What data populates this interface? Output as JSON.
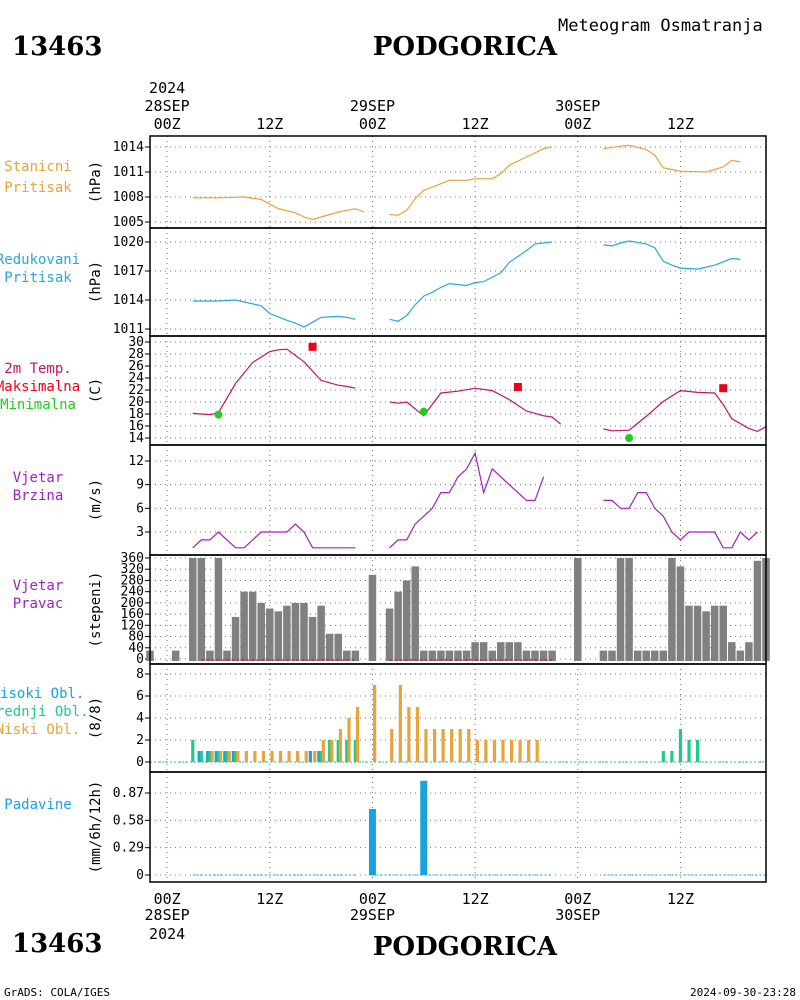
{
  "header": {
    "station_id": "13463",
    "station_name": "PODGORICA",
    "subtitle": "Meteogram Osmatranja"
  },
  "footer": {
    "credit": "GrADS: COLA/IGES",
    "timestamp": "2024-09-30-23:28"
  },
  "time_axis": {
    "ticks": [
      "00Z",
      "12Z",
      "00Z",
      "12Z",
      "00Z",
      "12Z"
    ],
    "day_labels": [
      "28SEP",
      "29SEP",
      "30SEP"
    ],
    "year_label": "2024",
    "time_unit": "hours since 2024-09-28 00Z",
    "range_hours": [
      -2,
      70
    ]
  },
  "colors": {
    "station_pressure": "#e8a33a",
    "reduced_pressure": "#2aa7d8",
    "temperature": "#c0136b",
    "tmax": "#e8001c",
    "tmin": "#22cc22",
    "wind": "#a020c0",
    "wind_dir_bar": "#808080",
    "cloud_high": "#16a3e0",
    "cloud_mid": "#1ccc8c",
    "cloud_low": "#e8a33a",
    "precip": "#16a3e0"
  },
  "chart_data": [
    {
      "type": "line",
      "id": "station_pressure",
      "label_lines": [
        "Stanicni",
        "Pritisak"
      ],
      "ylabel": "(hPa)",
      "yticks": [
        "1005",
        "1008",
        "1011",
        "1014"
      ],
      "ylim": [
        1004.5,
        1015.0
      ],
      "segments": [
        [
          [
            3,
            1007.9
          ],
          [
            6,
            1007.9
          ],
          [
            9,
            1008.0
          ],
          [
            11,
            1007.7
          ],
          [
            13,
            1006.6
          ],
          [
            15,
            1006.1
          ],
          [
            16,
            1005.6
          ],
          [
            17,
            1005.3
          ],
          [
            18,
            1005.6
          ],
          [
            20,
            1006.2
          ],
          [
            22,
            1006.6
          ],
          [
            23,
            1006.2
          ]
        ],
        [
          [
            26,
            1005.9
          ],
          [
            27,
            1005.8
          ],
          [
            28,
            1006.4
          ],
          [
            29,
            1007.8
          ],
          [
            30,
            1008.8
          ],
          [
            31,
            1009.2
          ],
          [
            32,
            1009.6
          ],
          [
            33,
            1010.0
          ],
          [
            35,
            1010.0
          ],
          [
            36,
            1010.2
          ],
          [
            38,
            1010.2
          ],
          [
            39,
            1010.8
          ],
          [
            40,
            1011.8
          ],
          [
            42,
            1012.8
          ],
          [
            44,
            1013.8
          ],
          [
            45,
            1014.0
          ]
        ],
        [
          [
            51,
            1013.8
          ],
          [
            53,
            1014.1
          ],
          [
            54,
            1014.2
          ],
          [
            56,
            1013.7
          ],
          [
            57,
            1013.0
          ],
          [
            58,
            1011.5
          ],
          [
            59,
            1011.3
          ],
          [
            60,
            1011.1
          ],
          [
            63,
            1011.0
          ],
          [
            65,
            1011.6
          ],
          [
            66,
            1012.4
          ],
          [
            67,
            1012.2
          ]
        ]
      ]
    },
    {
      "type": "line",
      "id": "reduced_pressure",
      "label_lines": [
        "Redukovani",
        "Pritisak"
      ],
      "ylabel": "(hPa)",
      "yticks": [
        "1011",
        "1014",
        "1017",
        "1020"
      ],
      "ylim": [
        1010.8,
        1020.6
      ],
      "segments": [
        [
          [
            3,
            1013.9
          ],
          [
            6,
            1013.9
          ],
          [
            8,
            1014.0
          ],
          [
            11,
            1013.4
          ],
          [
            12,
            1012.6
          ],
          [
            14,
            1011.9
          ],
          [
            15,
            1011.6
          ],
          [
            16,
            1011.2
          ],
          [
            17,
            1011.7
          ],
          [
            18,
            1012.2
          ],
          [
            20,
            1012.3
          ],
          [
            21,
            1012.2
          ],
          [
            22,
            1012.0
          ]
        ],
        [
          [
            26,
            1012.0
          ],
          [
            27,
            1011.8
          ],
          [
            28,
            1012.4
          ],
          [
            29,
            1013.5
          ],
          [
            30,
            1014.4
          ],
          [
            31,
            1014.8
          ],
          [
            32,
            1015.3
          ],
          [
            33,
            1015.7
          ],
          [
            35,
            1015.5
          ],
          [
            36,
            1015.8
          ],
          [
            37,
            1015.9
          ],
          [
            39,
            1016.8
          ],
          [
            40,
            1017.9
          ],
          [
            42,
            1019.1
          ],
          [
            43,
            1019.8
          ],
          [
            45,
            1020.0
          ]
        ],
        [
          [
            51,
            1019.7
          ],
          [
            52,
            1019.6
          ],
          [
            53,
            1019.9
          ],
          [
            54,
            1020.1
          ],
          [
            56,
            1019.8
          ],
          [
            57,
            1019.4
          ],
          [
            58,
            1018.0
          ],
          [
            59,
            1017.6
          ],
          [
            60,
            1017.3
          ],
          [
            62,
            1017.2
          ],
          [
            64,
            1017.6
          ],
          [
            66,
            1018.3
          ],
          [
            67,
            1018.2
          ]
        ]
      ]
    },
    {
      "type": "line",
      "id": "temperature",
      "label_lines": [
        "2m Temp.",
        "Maksimalna",
        "Minimalna"
      ],
      "ylabel": "(C)",
      "yticks": [
        "14",
        "16",
        "18",
        "20",
        "22",
        "24",
        "26",
        "28",
        "30"
      ],
      "ylim": [
        12.8,
        30.4
      ],
      "segments": [
        [
          [
            3,
            18.1
          ],
          [
            5,
            17.9
          ],
          [
            6,
            18.2
          ],
          [
            8,
            23.1
          ],
          [
            10,
            26.6
          ],
          [
            12,
            28.4
          ],
          [
            13,
            28.7
          ],
          [
            14,
            28.8
          ],
          [
            16,
            26.7
          ],
          [
            18,
            23.6
          ],
          [
            20,
            22.8
          ],
          [
            21,
            22.6
          ],
          [
            22,
            22.3
          ]
        ],
        [
          [
            26,
            20.0
          ],
          [
            27,
            19.8
          ],
          [
            28,
            20.0
          ],
          [
            30,
            17.7
          ],
          [
            31,
            19.6
          ],
          [
            32,
            21.5
          ],
          [
            34,
            21.8
          ],
          [
            36,
            22.3
          ],
          [
            38,
            21.9
          ],
          [
            40,
            20.4
          ],
          [
            42,
            18.5
          ],
          [
            44,
            17.7
          ],
          [
            45,
            17.5
          ],
          [
            46,
            16.3
          ]
        ],
        [
          [
            51,
            15.5
          ],
          [
            52,
            15.2
          ],
          [
            54,
            15.3
          ],
          [
            56,
            17.6
          ],
          [
            58,
            20.1
          ],
          [
            60,
            21.9
          ],
          [
            62,
            21.6
          ],
          [
            64,
            21.5
          ],
          [
            65,
            19.6
          ],
          [
            66,
            17.2
          ],
          [
            68,
            15.6
          ],
          [
            69,
            15.1
          ],
          [
            70,
            15.9
          ]
        ]
      ],
      "tmax_points": [
        [
          17,
          29.2
        ],
        [
          41,
          22.5
        ],
        [
          65,
          22.3
        ]
      ],
      "tmin_points": [
        [
          6,
          17.9
        ],
        [
          30,
          18.4
        ],
        [
          54,
          14.0
        ]
      ]
    },
    {
      "type": "line",
      "id": "wind_speed",
      "label_lines": [
        "Vjetar",
        "Brzina"
      ],
      "ylabel": "(m/s)",
      "yticks": [
        "3",
        "6",
        "9",
        "12"
      ],
      "ylim": [
        0.3,
        13.6
      ],
      "segments": [
        [
          [
            3,
            1
          ],
          [
            4,
            2
          ],
          [
            5,
            2
          ],
          [
            6,
            3
          ],
          [
            7,
            2
          ],
          [
            8,
            1
          ],
          [
            9,
            1
          ],
          [
            10,
            2
          ],
          [
            11,
            3
          ],
          [
            13,
            3
          ],
          [
            14,
            3
          ],
          [
            15,
            4
          ],
          [
            16,
            3
          ],
          [
            17,
            1
          ],
          [
            19,
            1
          ],
          [
            20,
            1
          ],
          [
            21,
            1
          ],
          [
            22,
            1
          ]
        ],
        [
          [
            26,
            1
          ],
          [
            27,
            2
          ],
          [
            28,
            2
          ],
          [
            29,
            4
          ],
          [
            30,
            5
          ],
          [
            31,
            6
          ],
          [
            32,
            8
          ],
          [
            33,
            8
          ],
          [
            34,
            10
          ],
          [
            35,
            11
          ],
          [
            36,
            13
          ],
          [
            37,
            8
          ],
          [
            38,
            11
          ],
          [
            39,
            10
          ],
          [
            40,
            9
          ],
          [
            41,
            8
          ],
          [
            42,
            7
          ],
          [
            43,
            7
          ],
          [
            44,
            10
          ]
        ],
        [
          [
            51,
            7
          ],
          [
            52,
            7
          ],
          [
            53,
            6
          ],
          [
            54,
            6
          ],
          [
            55,
            8
          ],
          [
            56,
            8
          ],
          [
            57,
            6
          ],
          [
            58,
            5
          ],
          [
            59,
            3
          ],
          [
            60,
            2
          ],
          [
            61,
            3
          ],
          [
            62,
            3
          ],
          [
            63,
            3
          ],
          [
            64,
            3
          ],
          [
            65,
            1
          ],
          [
            66,
            1
          ],
          [
            67,
            3
          ],
          [
            68,
            2
          ],
          [
            69,
            3
          ]
        ]
      ]
    },
    {
      "type": "bar",
      "id": "wind_direction",
      "label_lines": [
        "Vjetar",
        "Pravac"
      ],
      "ylabel": "(stepeni)",
      "yticks": [
        "0",
        "40",
        "80",
        "120",
        "160",
        "200",
        "240",
        "280",
        "320",
        "360"
      ],
      "ylim": [
        -5,
        370
      ],
      "hours": [
        -2,
        1,
        3,
        4,
        5,
        6,
        7,
        8,
        9,
        10,
        11,
        12,
        13,
        14,
        15,
        16,
        17,
        18,
        19,
        20,
        21,
        22,
        24,
        26,
        27,
        28,
        29,
        30,
        31,
        32,
        33,
        34,
        35,
        36,
        37,
        38,
        39,
        40,
        41,
        42,
        43,
        44,
        45,
        48,
        51,
        52,
        53,
        54,
        55,
        56,
        57,
        58,
        59,
        60,
        61,
        62,
        63,
        64,
        65,
        66,
        67,
        68,
        69,
        70
      ],
      "values": [
        30,
        30,
        360,
        360,
        30,
        360,
        30,
        150,
        240,
        240,
        200,
        180,
        170,
        190,
        200,
        200,
        150,
        190,
        90,
        90,
        30,
        30,
        300,
        180,
        240,
        280,
        330,
        30,
        30,
        30,
        30,
        30,
        30,
        60,
        60,
        30,
        60,
        60,
        60,
        30,
        30,
        30,
        30,
        360,
        30,
        30,
        360,
        360,
        30,
        30,
        30,
        30,
        360,
        330,
        190,
        190,
        170,
        190,
        190,
        60,
        30,
        60,
        350,
        360
      ]
    },
    {
      "type": "bar",
      "id": "cloud_cover",
      "label_lines": [
        "Visoki Obl.",
        "Srednji Obl.",
        "Niski Obl."
      ],
      "ylabel": "(8/8)",
      "yticks": [
        "0",
        "2",
        "4",
        "6",
        "8"
      ],
      "ylim": [
        -0.3,
        8.5
      ],
      "series": [
        {
          "name": "Visoki Obl.",
          "hours": [
            4,
            5,
            6,
            7,
            8,
            17,
            18
          ],
          "values": [
            1,
            1,
            1,
            1,
            1,
            1,
            1
          ]
        },
        {
          "name": "Srednji Obl.",
          "hours": [
            3,
            4,
            5,
            6,
            7,
            8,
            18,
            19,
            20,
            21,
            22,
            58,
            59,
            60,
            61,
            62
          ],
          "values": [
            2,
            1,
            1,
            1,
            1,
            1,
            1,
            2,
            2,
            2,
            2,
            1,
            1,
            3,
            2,
            2
          ]
        },
        {
          "name": "Niski Obl.",
          "hours": [
            5,
            6,
            7,
            8,
            9,
            10,
            11,
            12,
            13,
            14,
            15,
            16,
            17,
            18,
            19,
            20,
            21,
            22,
            24,
            26,
            27,
            28,
            29,
            30,
            31,
            32,
            33,
            34,
            35,
            36,
            37,
            38,
            39,
            40,
            41,
            42,
            43
          ],
          "values": [
            1,
            1,
            1,
            1,
            1,
            1,
            1,
            1,
            1,
            1,
            1,
            1,
            1,
            2,
            2,
            3,
            4,
            5,
            7,
            3,
            7,
            5,
            5,
            3,
            3,
            3,
            3,
            3,
            3,
            2,
            2,
            2,
            2,
            2,
            2,
            2,
            2
          ]
        }
      ]
    },
    {
      "type": "bar",
      "id": "precipitation",
      "label_lines": [
        "Padavine"
      ],
      "ylabel": "(mm/6h/12h)",
      "yticks": [
        "0",
        "0.29",
        "0.58",
        "0.87"
      ],
      "ylim": [
        -0.05,
        1.05
      ],
      "bar_hours": [
        24,
        30
      ],
      "bar_values": [
        0.7,
        1.0
      ],
      "trace_segments": [
        [
          3,
          22
        ],
        [
          24,
          45
        ],
        [
          51,
          70
        ]
      ]
    }
  ]
}
